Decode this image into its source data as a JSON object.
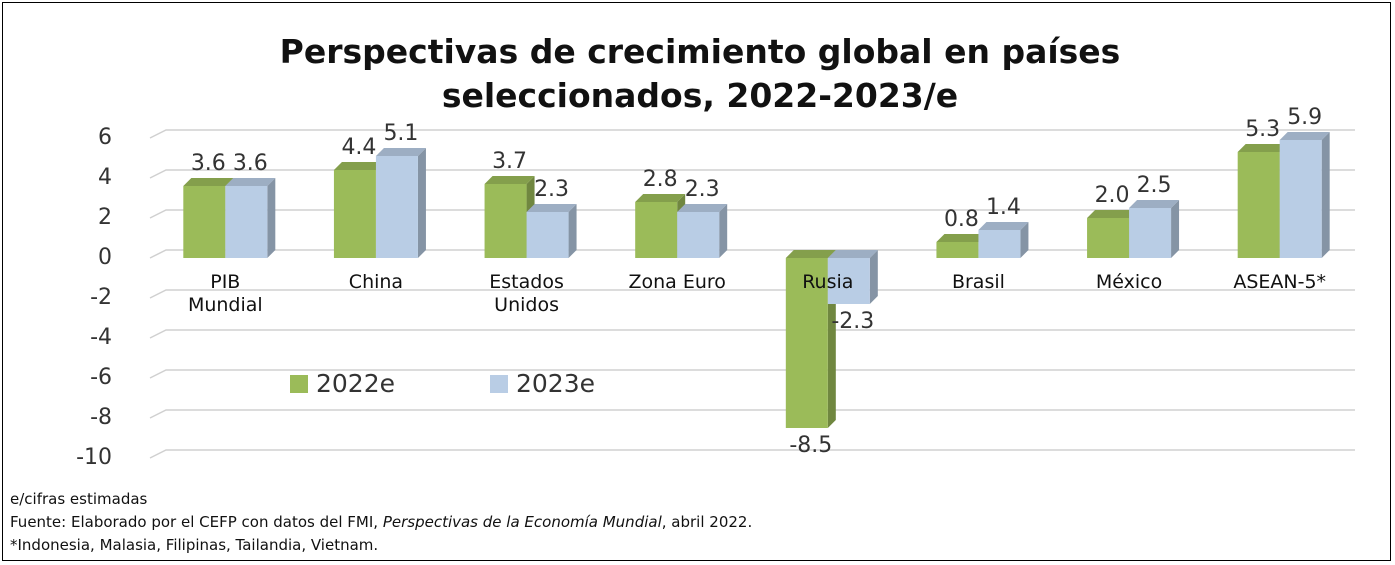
{
  "chart_data": {
    "type": "bar",
    "title": "Perspectivas de crecimiento global en países seleccionados, 2022-2023/e",
    "categories": [
      "PIB\nMundial",
      "China",
      "Estados\nUnidos",
      "Zona Euro",
      "Rusia",
      "Brasil",
      "México",
      "ASEAN-5*"
    ],
    "series": [
      {
        "name": "2022e",
        "color": "#9bbb59",
        "values": [
          3.6,
          4.4,
          3.7,
          2.8,
          -8.5,
          0.8,
          2.0,
          5.3
        ],
        "value_labels": [
          "3.6",
          "4.4",
          "3.7",
          "2.8",
          "-8.5",
          "0.8",
          "2.0",
          "5.3"
        ]
      },
      {
        "name": "2023e",
        "color": "#b9cde5",
        "values": [
          3.6,
          5.1,
          2.3,
          2.3,
          -2.3,
          1.4,
          2.5,
          5.9
        ],
        "value_labels": [
          "3.6",
          "5.1",
          "2.3",
          "2.3",
          "-2.3",
          "1.4",
          "2.5",
          "5.9"
        ]
      }
    ],
    "ylim": [
      -10,
      6
    ],
    "yticks": [
      -10,
      -8,
      -6,
      -4,
      -2,
      0,
      2,
      4,
      6
    ],
    "grid": true,
    "notes": {
      "estimate": "e/cifras estimadas",
      "source_prefix": "Fuente: Elaborado por el CEFP con datos del FMI, ",
      "source_italic": "Perspectivas de la Economía Mundial",
      "source_suffix": ", abril 2022.",
      "footnote": "*Indonesia, Malasia, Filipinas, Tailandia, Vietnam."
    }
  }
}
